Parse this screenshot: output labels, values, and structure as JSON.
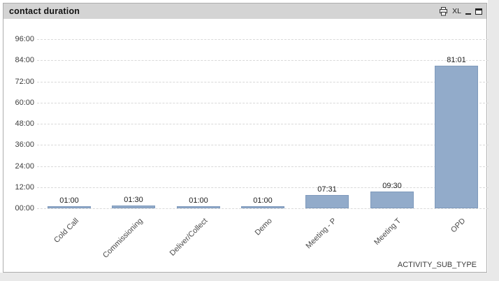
{
  "window": {
    "title": "contact duration",
    "titlebar_icons": {
      "print": "print-icon",
      "excel_label": "XL",
      "minimize": "minimize-icon",
      "maximize": "maximize-icon"
    }
  },
  "chart_data": {
    "type": "bar",
    "title": "contact duration",
    "xlabel": "ACTIVITY_SUB_TYPE",
    "ylabel": "",
    "categories": [
      "Cold Call",
      "Commissioning",
      "Deliver/Collect",
      "Demo",
      "Meeting - P",
      "Meeting T",
      "OPD"
    ],
    "values_minutes": [
      60,
      90,
      60,
      60,
      451,
      570,
      4861
    ],
    "value_labels": [
      "01:00",
      "01:30",
      "01:00",
      "01:00",
      "07:31",
      "09:30",
      "81:01"
    ],
    "y_ticks": [
      "96:00",
      "84:00",
      "72:00",
      "60:00",
      "48:00",
      "36:00",
      "24:00",
      "12:00",
      "00:00"
    ],
    "ylim_minutes": [
      0,
      5760
    ],
    "grid": "horizontal-dashed",
    "legend": "none",
    "category_label_angle_deg": -45,
    "bar_color": "#92abca",
    "bar_border_color": "#7f9abc",
    "caption_bg": "#d4d4d4"
  }
}
